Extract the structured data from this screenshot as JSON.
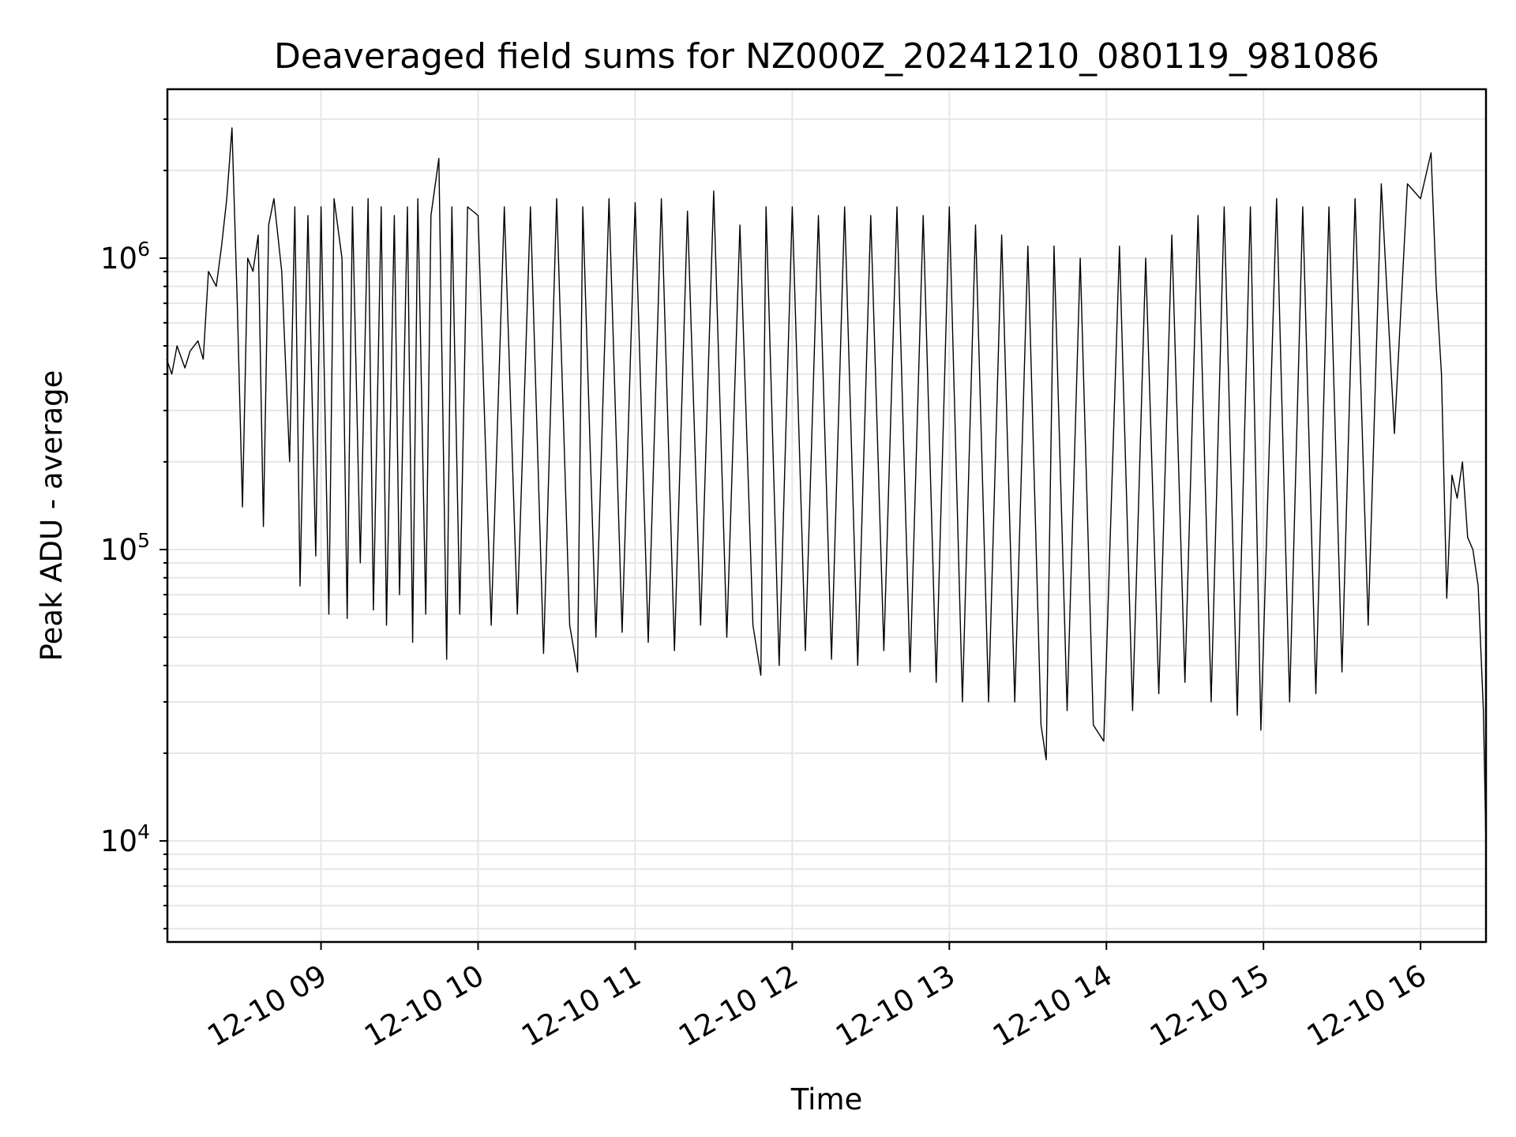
{
  "chart_data": {
    "type": "line",
    "title": "Deaveraged field sums for NZ000Z_20241210_080119_981086",
    "xlabel": "Time",
    "ylabel": "Peak ADU - average",
    "yscale": "log",
    "ylim": [
      4500,
      3800000
    ],
    "xlim": [
      "2024-12-10 08:01:19",
      "2024-12-10 16:25:00"
    ],
    "grid": true,
    "x_tick_labels": [
      "12-10 09",
      "12-10 10",
      "12-10 11",
      "12-10 12",
      "12-10 13",
      "12-10 14",
      "12-10 15",
      "12-10 16"
    ],
    "x_tick_times": [
      "2024-12-10 09:00",
      "2024-12-10 10:00",
      "2024-12-10 11:00",
      "2024-12-10 12:00",
      "2024-12-10 13:00",
      "2024-12-10 14:00",
      "2024-12-10 15:00",
      "2024-12-10 16:00"
    ],
    "y_tick_labels": [
      {
        "base": "10",
        "exp": "4"
      },
      {
        "base": "10",
        "exp": "5"
      },
      {
        "base": "10",
        "exp": "6"
      }
    ],
    "y_tick_values": [
      10000,
      100000,
      1000000
    ],
    "series": [
      {
        "color": "#000000",
        "x": [
          "08:01",
          "08:03",
          "08:05",
          "08:08",
          "08:10",
          "08:13",
          "08:15",
          "08:17",
          "08:20",
          "08:22",
          "08:24",
          "08:26",
          "08:28",
          "08:30",
          "08:32",
          "08:34",
          "08:36",
          "08:38",
          "08:40",
          "08:42",
          "08:45",
          "08:48",
          "08:50",
          "08:52",
          "08:55",
          "08:58",
          "09:00",
          "09:03",
          "09:05",
          "09:08",
          "09:10",
          "09:12",
          "09:15",
          "09:18",
          "09:20",
          "09:23",
          "09:25",
          "09:28",
          "09:30",
          "09:33",
          "09:35",
          "09:37",
          "09:40",
          "09:42",
          "09:45",
          "09:48",
          "09:50",
          "09:53",
          "09:56",
          "10:00",
          "10:05",
          "10:10",
          "10:15",
          "10:20",
          "10:25",
          "10:30",
          "10:35",
          "10:38",
          "10:40",
          "10:45",
          "10:50",
          "10:55",
          "11:00",
          "11:05",
          "11:10",
          "11:15",
          "11:20",
          "11:25",
          "11:30",
          "11:35",
          "11:40",
          "11:45",
          "11:48",
          "11:50",
          "11:55",
          "12:00",
          "12:05",
          "12:10",
          "12:15",
          "12:20",
          "12:25",
          "12:30",
          "12:35",
          "12:40",
          "12:45",
          "12:50",
          "12:55",
          "13:00",
          "13:05",
          "13:10",
          "13:15",
          "13:20",
          "13:25",
          "13:30",
          "13:35",
          "13:37",
          "13:40",
          "13:45",
          "13:50",
          "13:55",
          "13:59",
          "14:05",
          "14:10",
          "14:15",
          "14:20",
          "14:25",
          "14:30",
          "14:35",
          "14:40",
          "14:45",
          "14:50",
          "14:55",
          "14:59",
          "15:05",
          "15:10",
          "15:15",
          "15:20",
          "15:25",
          "15:30",
          "15:35",
          "15:40",
          "15:45",
          "15:50",
          "15:55",
          "16:00",
          "16:04",
          "16:06",
          "16:08",
          "16:10",
          "16:12",
          "16:14",
          "16:16",
          "16:18",
          "16:20",
          "16:22",
          "16:24",
          "16:25"
        ],
        "y": [
          450000,
          400000,
          500000,
          420000,
          480000,
          520000,
          450000,
          900000,
          800000,
          1100000,
          1600000,
          2800000,
          700000,
          140000,
          1000000,
          900000,
          1200000,
          120000,
          1300000,
          1600000,
          900000,
          200000,
          1500000,
          75000,
          1400000,
          95000,
          1500000,
          60000,
          1600000,
          1000000,
          58000,
          1500000,
          90000,
          1600000,
          62000,
          1500000,
          55000,
          1400000,
          70000,
          1500000,
          48000,
          1600000,
          60000,
          1400000,
          2200000,
          42000,
          1500000,
          60000,
          1500000,
          1400000,
          55000,
          1500000,
          60000,
          1500000,
          44000,
          1600000,
          55000,
          38000,
          1500000,
          50000,
          1600000,
          52000,
          1550000,
          48000,
          1600000,
          45000,
          1450000,
          55000,
          1700000,
          50000,
          1300000,
          55000,
          37000,
          1500000,
          40000,
          1500000,
          45000,
          1400000,
          42000,
          1500000,
          40000,
          1400000,
          45000,
          1500000,
          38000,
          1400000,
          35000,
          1500000,
          30000,
          1300000,
          30000,
          1200000,
          30000,
          1100000,
          25000,
          19000,
          1100000,
          28000,
          1000000,
          25000,
          22000,
          1100000,
          28000,
          1000000,
          32000,
          1200000,
          35000,
          1400000,
          30000,
          1500000,
          27000,
          1500000,
          24000,
          1600000,
          30000,
          1500000,
          32000,
          1500000,
          38000,
          1600000,
          55000,
          1800000,
          250000,
          1800000,
          1600000,
          2300000,
          800000,
          400000,
          68000,
          180000,
          150000,
          200000,
          110000,
          100000,
          75000,
          28000,
          9500
        ]
      }
    ]
  }
}
